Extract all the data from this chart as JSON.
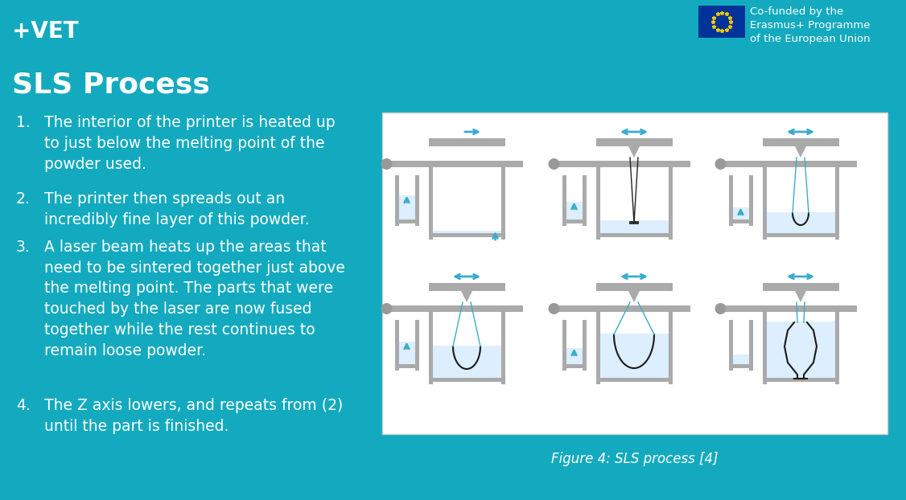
{
  "bg_color": "#13AABF",
  "title_text": "+VET",
  "title_color": "#FFFFFF",
  "title_fontsize": 20,
  "heading_text": "SLS Process",
  "heading_fontsize": 26,
  "heading_color": "#FFFFFF",
  "body_items": [
    "The interior of the printer is heated up\nto just below the melting point of the\npowder used.",
    "The printer then spreads out an\nincredibly fine layer of this powder.",
    "A laser beam heats up the areas that\nneed to be sintered together just above\nthe melting point. The parts that were\ntouched by the laser are now fused\ntogether while the rest continues to\nremain loose powder.",
    "The Z axis lowers, and repeats from (2)\nuntil the part is finished."
  ],
  "body_fontsize": 13.5,
  "body_color": "#FFFFFF",
  "caption_text": "Figure 4: SLS process [4]",
  "caption_fontsize": 12,
  "caption_color": "#FFFFFF",
  "eu_text": "Co-funded by the\nErasmus+ Programme\nof the European Union",
  "eu_fontsize": 9.5,
  "eu_color": "#FFFFFF",
  "diagram_bg": "#FFFFFF",
  "diagram_line_color": "#888888",
  "diagram_arrow_color": "#3AACCC",
  "diagram_powder_color": "#DDEEFF",
  "diagram_fused_color": "#222222",
  "diagram_roller_color": "#AAAAAA",
  "diagram_ball_color": "#999999"
}
